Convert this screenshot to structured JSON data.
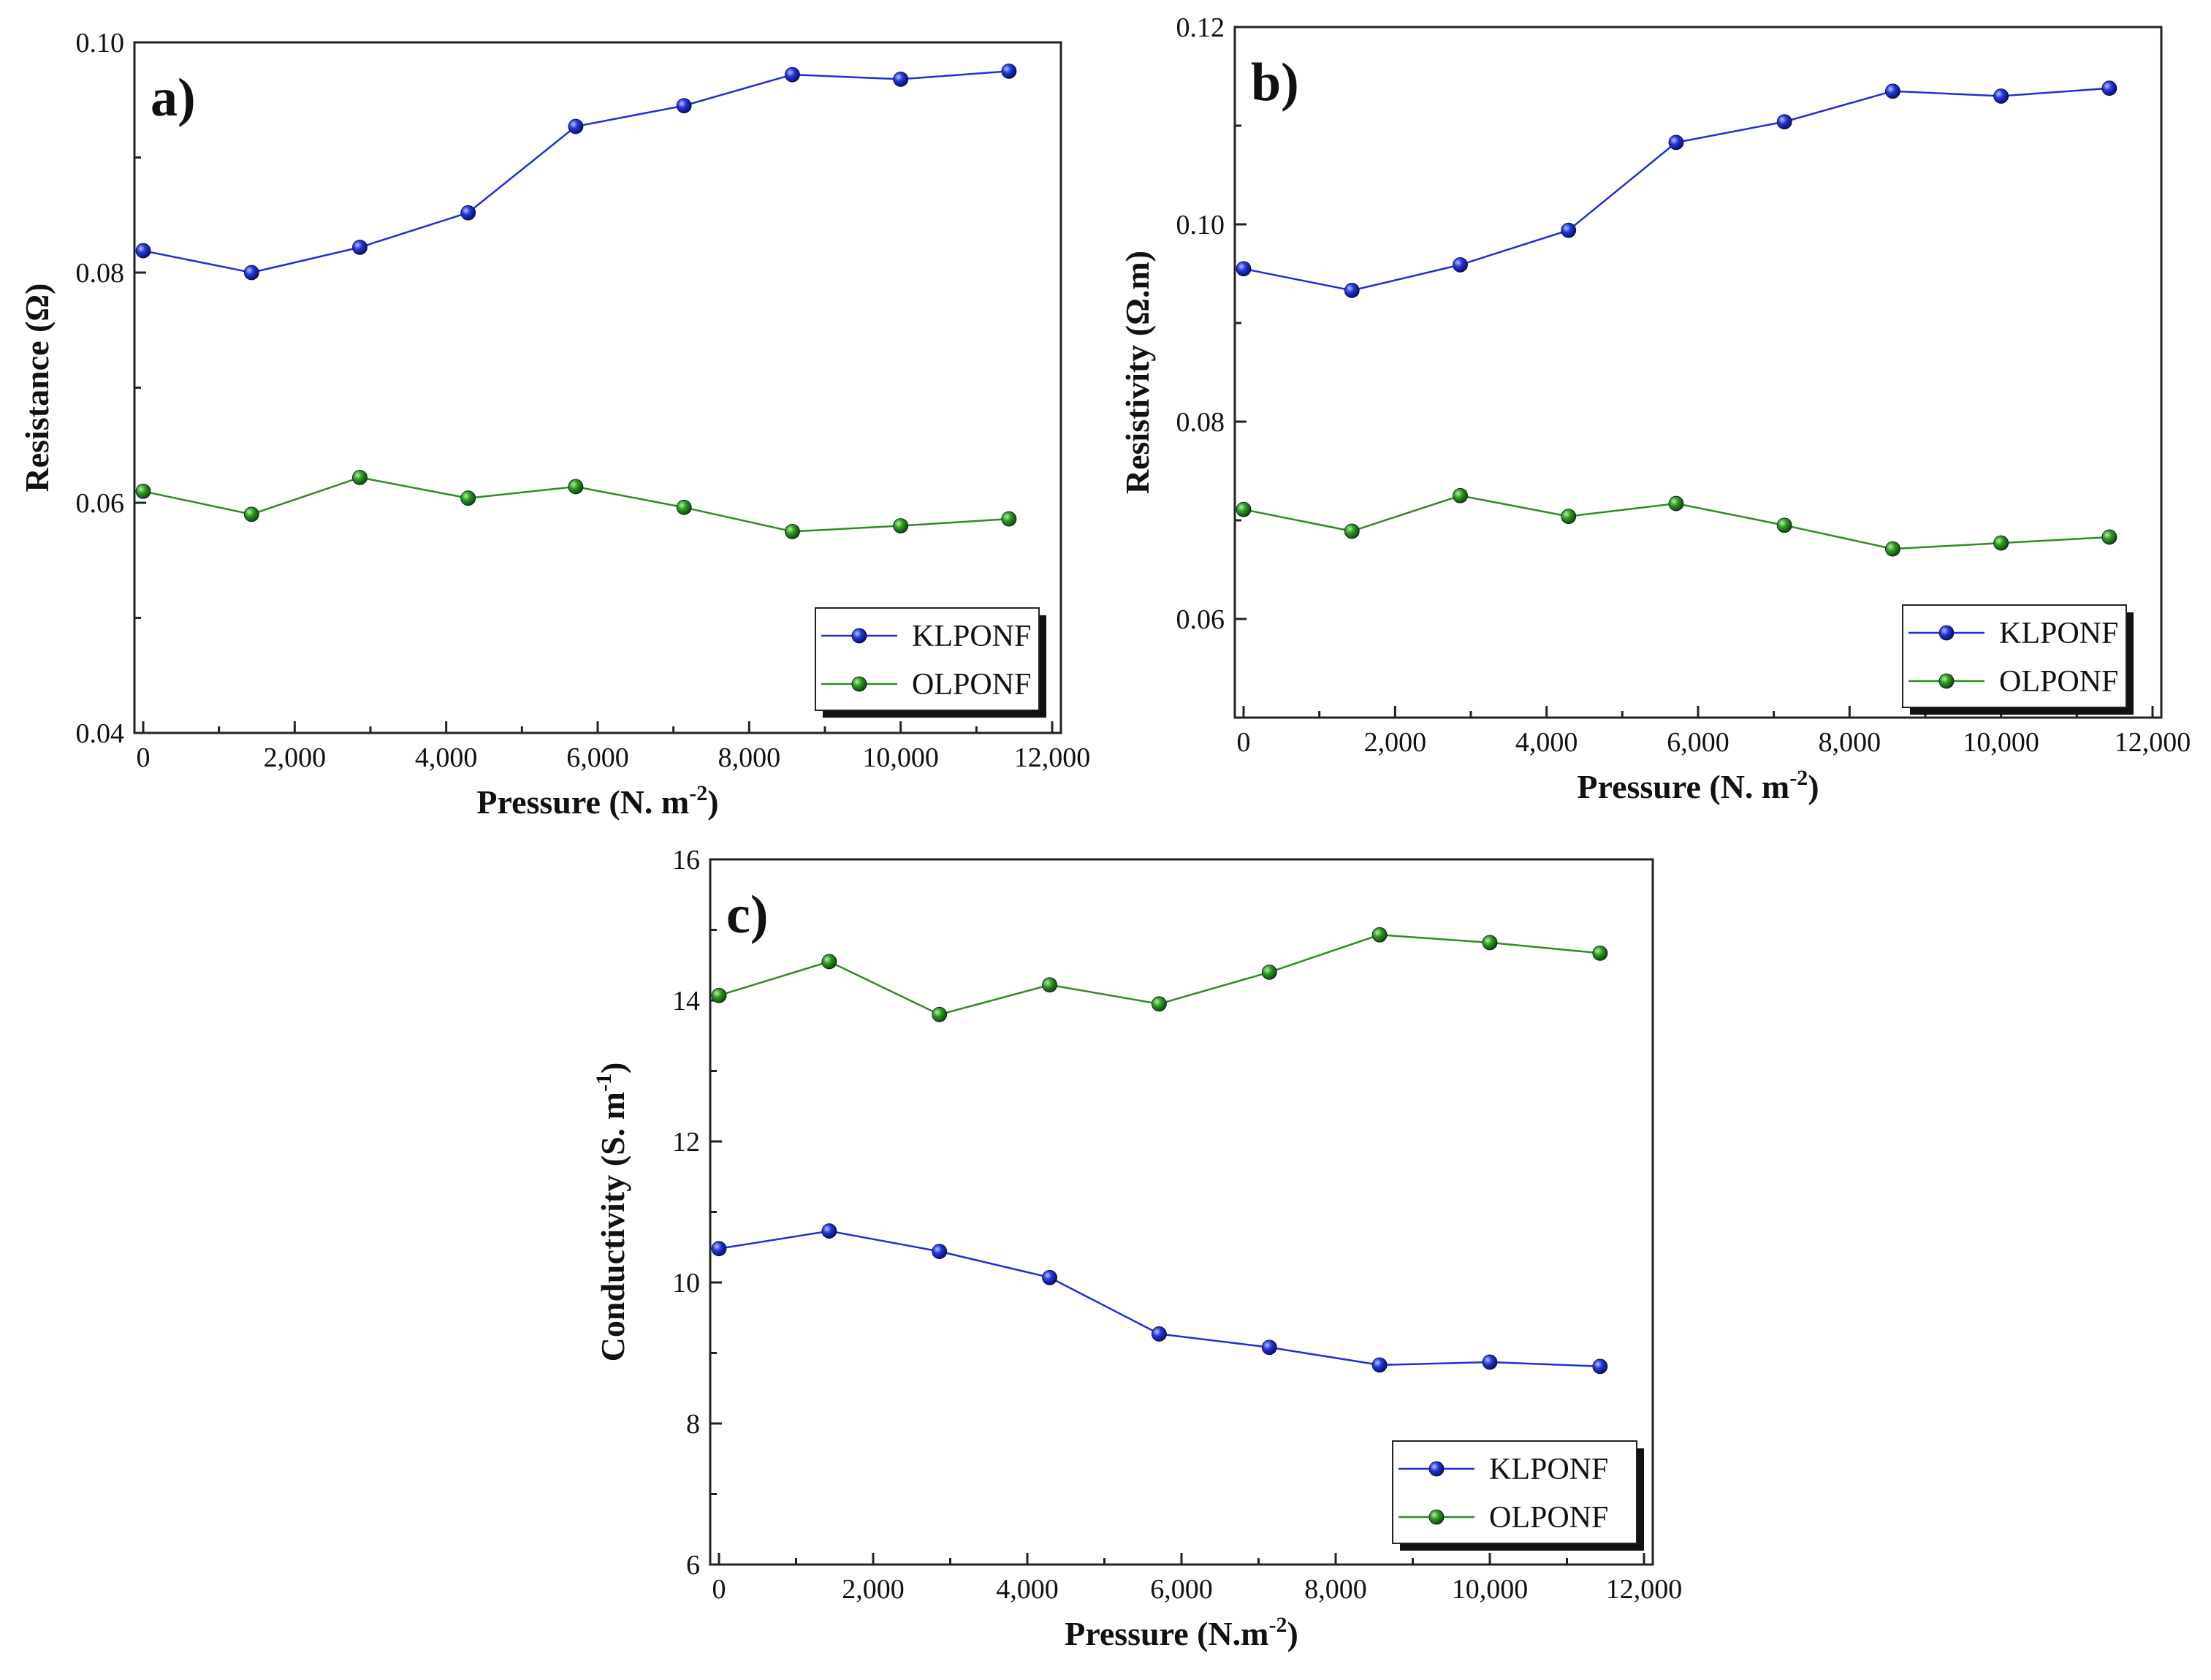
{
  "figure": {
    "colors": {
      "KLPONF": "#1f2fd6",
      "OLPONF": "#2e8b22"
    }
  },
  "chart_data": [
    {
      "id": "a",
      "type": "line",
      "panel_label": "a)",
      "xlabel": "Pressure (N. m",
      "xlabel_sup": "-2",
      "xlabel_close": ")",
      "ylabel": "Resistance (Ω)",
      "ylabel_sup": "",
      "ylabel_close": "",
      "xlim": [
        0,
        12000
      ],
      "ylim": [
        0.04,
        0.1
      ],
      "xticks": [
        0,
        2000,
        4000,
        6000,
        8000,
        10000,
        12000
      ],
      "xtick_labels": [
        "0",
        "2,000",
        "4,000",
        "6,000",
        "8,000",
        "10,000",
        "12,000"
      ],
      "yticks": [
        0.04,
        0.06,
        0.08,
        0.1
      ],
      "ytick_labels": [
        "0.04",
        "0.06",
        "0.08",
        "0.10"
      ],
      "legend_position": "bottom-right",
      "x": [
        0,
        1430,
        2860,
        4290,
        5710,
        7140,
        8570,
        10000,
        11430
      ],
      "series": [
        {
          "name": "KLPONF",
          "values": [
            0.0819,
            0.08,
            0.0822,
            0.0852,
            0.0927,
            0.0945,
            0.0972,
            0.0968,
            0.0975
          ]
        },
        {
          "name": "OLPONF",
          "values": [
            0.061,
            0.059,
            0.0622,
            0.0604,
            0.0614,
            0.0596,
            0.0575,
            0.058,
            0.0586
          ]
        }
      ]
    },
    {
      "id": "b",
      "type": "line",
      "panel_label": "b)",
      "xlabel": "Pressure (N. m",
      "xlabel_sup": "-2",
      "xlabel_close": ")",
      "ylabel": "Resistivity (Ω.m)",
      "ylabel_sup": "",
      "ylabel_close": "",
      "xlim": [
        0,
        12000
      ],
      "ylim": [
        0.05,
        0.12
      ],
      "xticks": [
        0,
        2000,
        4000,
        6000,
        8000,
        10000,
        12000
      ],
      "xtick_labels": [
        "0",
        "2,000",
        "4,000",
        "6,000",
        "8,000",
        "10,000",
        "12,000"
      ],
      "yticks": [
        0.06,
        0.08,
        0.1,
        0.12
      ],
      "ytick_labels": [
        "0.06",
        "0.08",
        "0.10",
        "0.12"
      ],
      "legend_position": "bottom-right",
      "x": [
        0,
        1430,
        2860,
        4290,
        5710,
        7140,
        8570,
        10000,
        11430
      ],
      "series": [
        {
          "name": "KLPONF",
          "values": [
            0.0955,
            0.0933,
            0.0959,
            0.0994,
            0.1083,
            0.1104,
            0.1135,
            0.113,
            0.1138
          ]
        },
        {
          "name": "OLPONF",
          "values": [
            0.0711,
            0.0689,
            0.0725,
            0.0704,
            0.0717,
            0.0695,
            0.0671,
            0.0677,
            0.0683
          ]
        }
      ]
    },
    {
      "id": "c",
      "type": "line",
      "panel_label": "c)",
      "xlabel": "Pressure (N.m",
      "xlabel_sup": "-2",
      "xlabel_close": ")",
      "ylabel": "Conductivity (S. m",
      "ylabel_sup": "-1",
      "ylabel_close": ")",
      "xlim": [
        0,
        12000
      ],
      "ylim": [
        6,
        16
      ],
      "xticks": [
        0,
        2000,
        4000,
        6000,
        8000,
        10000,
        12000
      ],
      "xtick_labels": [
        "0",
        "2,000",
        "4,000",
        "6,000",
        "8,000",
        "10,000",
        "12,000"
      ],
      "yticks": [
        6,
        8,
        10,
        12,
        14,
        16
      ],
      "ytick_labels": [
        "6",
        "8",
        "10",
        "12",
        "14",
        "16"
      ],
      "legend_position": "bottom-right",
      "x": [
        0,
        1430,
        2860,
        4290,
        5710,
        7140,
        8570,
        10000,
        11430
      ],
      "series": [
        {
          "name": "KLPONF",
          "values": [
            10.48,
            10.73,
            10.44,
            10.07,
            9.27,
            9.08,
            8.83,
            8.87,
            8.81
          ]
        },
        {
          "name": "OLPONF",
          "values": [
            14.07,
            14.55,
            13.8,
            14.22,
            13.95,
            14.4,
            14.93,
            14.82,
            14.67
          ]
        }
      ]
    }
  ]
}
